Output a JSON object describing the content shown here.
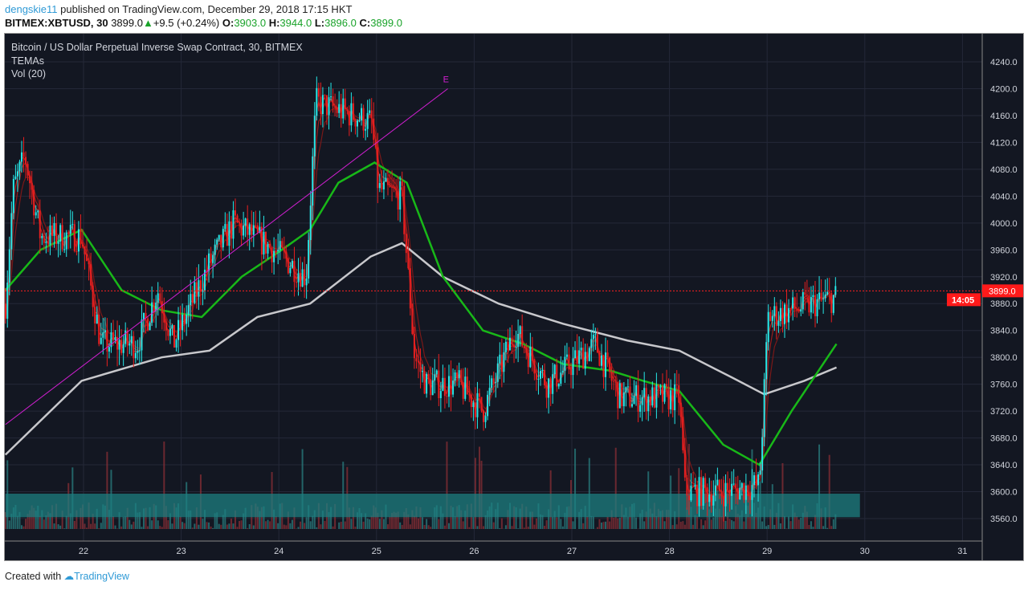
{
  "header": {
    "user": "dengskie11",
    "published": "published on TradingView.com, December 29, 2018 17:15 HKT",
    "symbol": "BITMEX:XBTUSD, 30",
    "price": "3899.0",
    "change": "+9.5 (+0.24%)",
    "o_label": "O:",
    "o": "3903.0",
    "h_label": "H:",
    "h": "3944.0",
    "l_label": "L:",
    "l": "3896.0",
    "c_label": "C:",
    "c": "3899.0"
  },
  "legend": {
    "title": "Bitcoin / US Dollar Perpetual Inverse Swap Contract, 30, BITMEX",
    "ind1": "TEMAs",
    "ind2": "Vol (20)"
  },
  "footer": {
    "created": "Created with",
    "brand": "TradingView"
  },
  "colors": {
    "bg": "#131722",
    "up": "#26e8e8",
    "down": "#e81f1f",
    "green": "#18b818",
    "white": "#c8c8cc",
    "purple": "#d21fd2",
    "zone": "#1e7f80"
  },
  "chart_data": {
    "type": "candlestick",
    "timeframe": "30",
    "ylim": [
      3530,
      4270
    ],
    "xlim": [
      21.2,
      31.2
    ],
    "y_ticks": [
      "4240.0",
      "4200.0",
      "4160.0",
      "4120.0",
      "4080.0",
      "4040.0",
      "4000.0",
      "3960.0",
      "3920.0",
      "3880.0",
      "3840.0",
      "3800.0",
      "3760.0",
      "3720.0",
      "3680.0",
      "3640.0",
      "3600.0",
      "3560.0"
    ],
    "x_ticks": [
      "22",
      "23",
      "24",
      "25",
      "26",
      "27",
      "28",
      "29",
      "30",
      "31"
    ],
    "last_price_label": "3899.0",
    "countdown_label": "14:05",
    "last_price": 3899,
    "close_path": [
      [
        21.2,
        3880
      ],
      [
        21.28,
        4050
      ],
      [
        21.4,
        4100
      ],
      [
        21.56,
        3980
      ],
      [
        21.98,
        3980
      ],
      [
        22.18,
        3820
      ],
      [
        22.55,
        3820
      ],
      [
        22.76,
        3900
      ],
      [
        22.92,
        3820
      ],
      [
        23.29,
        3940
      ],
      [
        23.54,
        4000
      ],
      [
        23.95,
        3960
      ],
      [
        24.28,
        3920
      ],
      [
        24.38,
        4180
      ],
      [
        24.77,
        4160
      ],
      [
        24.95,
        4150
      ],
      [
        25.02,
        4050
      ],
      [
        25.26,
        4040
      ],
      [
        25.39,
        3800
      ],
      [
        25.51,
        3760
      ],
      [
        25.84,
        3760
      ],
      [
        26.09,
        3720
      ],
      [
        26.42,
        3840
      ],
      [
        26.75,
        3760
      ],
      [
        27.24,
        3820
      ],
      [
        27.49,
        3740
      ],
      [
        28.1,
        3740
      ],
      [
        28.16,
        3600
      ],
      [
        28.55,
        3600
      ],
      [
        28.92,
        3610
      ],
      [
        29.01,
        3860
      ],
      [
        29.71,
        3890
      ]
    ],
    "green_ema": [
      [
        21.2,
        3900
      ],
      [
        21.56,
        3960
      ],
      [
        21.98,
        3990
      ],
      [
        22.39,
        3900
      ],
      [
        22.8,
        3870
      ],
      [
        23.21,
        3860
      ],
      [
        23.62,
        3920
      ],
      [
        24.03,
        3960
      ],
      [
        24.32,
        3990
      ],
      [
        24.61,
        4060
      ],
      [
        24.98,
        4090
      ],
      [
        25.31,
        4060
      ],
      [
        25.68,
        3920
      ],
      [
        26.09,
        3840
      ],
      [
        26.5,
        3820
      ],
      [
        26.91,
        3790
      ],
      [
        27.4,
        3780
      ],
      [
        27.73,
        3765
      ],
      [
        28.1,
        3750
      ],
      [
        28.55,
        3670
      ],
      [
        28.92,
        3640
      ],
      [
        29.25,
        3720
      ],
      [
        29.71,
        3820
      ]
    ],
    "white_ma": [
      [
        21.2,
        3655
      ],
      [
        21.98,
        3765
      ],
      [
        22.8,
        3800
      ],
      [
        23.29,
        3810
      ],
      [
        23.78,
        3860
      ],
      [
        24.32,
        3880
      ],
      [
        24.94,
        3950
      ],
      [
        25.26,
        3970
      ],
      [
        25.68,
        3920
      ],
      [
        26.25,
        3880
      ],
      [
        26.91,
        3850
      ],
      [
        27.57,
        3825
      ],
      [
        28.1,
        3810
      ],
      [
        28.64,
        3770
      ],
      [
        28.97,
        3745
      ],
      [
        29.38,
        3765
      ],
      [
        29.71,
        3785
      ]
    ],
    "trendline": {
      "label": "E",
      "points": [
        [
          21.2,
          3700
        ],
        [
          25.73,
          4200
        ]
      ]
    },
    "support_zone": {
      "from": 21.2,
      "to": 29.95,
      "low": 3562,
      "high": 3597
    }
  }
}
